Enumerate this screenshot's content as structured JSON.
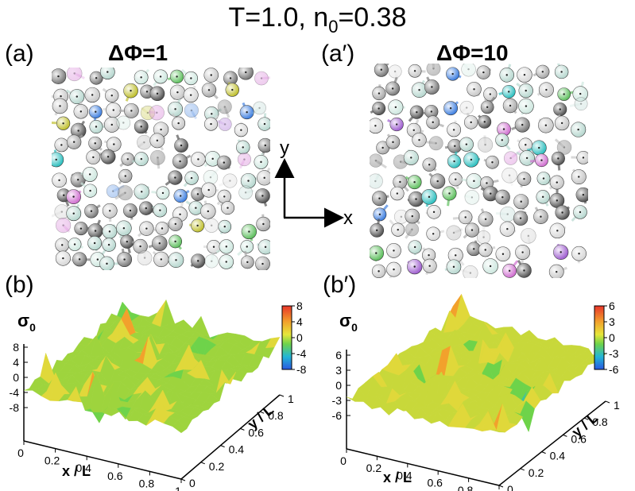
{
  "title": {
    "prefix": "T=1.0, n",
    "sub": "0",
    "suffix": "=0.38"
  },
  "panels": {
    "a_label": "(a)",
    "a_dphi": "ΔΦ=1",
    "a2_label": "(a′)",
    "a2_dphi": "ΔΦ=10",
    "b_label": "(b)",
    "b2_label": "(b′)"
  },
  "axes_symbol": {
    "y": "y",
    "x": "x"
  },
  "surface": {
    "sigma_label": "σ",
    "sigma_sub": "0",
    "x_label": "x / L",
    "y_label": "y / L",
    "x_ticks": [
      "0",
      "0.2",
      "0.4",
      "0.6",
      "0.8",
      "1"
    ],
    "y_ticks": [
      "0",
      "0.2",
      "0.4",
      "0.6",
      "0.8",
      "1"
    ],
    "b_z_ticks": [
      "8",
      "4",
      "0",
      "-4",
      "-8"
    ],
    "b_colorbar": [
      "8",
      "4",
      "0",
      "-4",
      "-8"
    ],
    "b2_z_ticks": [
      "6",
      "3",
      "0",
      "-3",
      "-6"
    ],
    "b2_colorbar": [
      "6",
      "3",
      "0",
      "-3",
      "-6"
    ]
  },
  "colors": {
    "colorbar": [
      "#e8352a",
      "#f2a12c",
      "#e6e63a",
      "#6ed34a",
      "#23b6d6",
      "#2a58e0"
    ],
    "surface": "#9ed43d"
  }
}
